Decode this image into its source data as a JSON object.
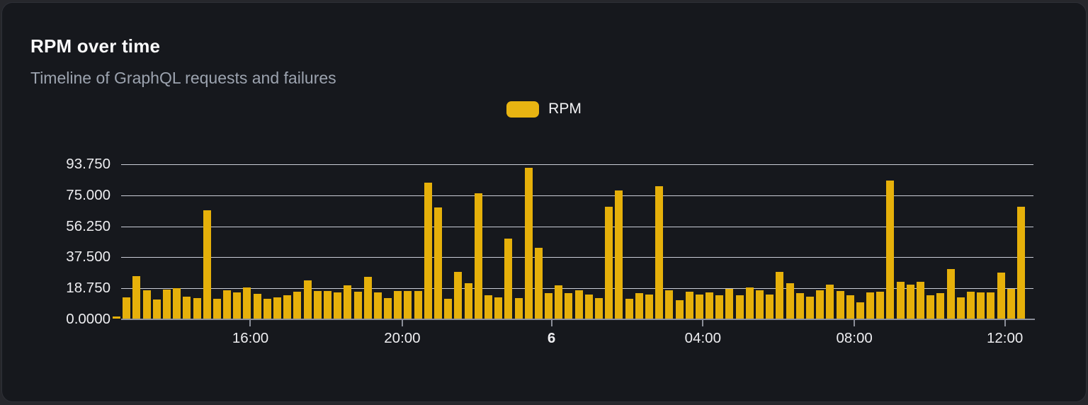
{
  "header": {
    "title": "RPM over time",
    "subtitle": "Timeline of GraphQL requests and failures"
  },
  "legend": {
    "items": [
      {
        "label": "RPM",
        "color": "#E8B412"
      }
    ]
  },
  "theme": {
    "card_background": "#16181D",
    "outer_background": "#26272C",
    "grid_color": "#DADDE7",
    "axis_color": "#8B8E98",
    "text_primary": "#FAFAFB",
    "text_secondary": "#9CA3AF",
    "bar_color": "#E6B00A"
  },
  "chart_data": {
    "type": "bar",
    "title": "RPM over time",
    "subtitle": "Timeline of GraphQL requests and failures",
    "xlabel": "",
    "ylabel": "",
    "ylim": [
      0,
      93.75
    ],
    "grid": "horizontal",
    "legend_position": "top-center",
    "y_tick_labels": [
      "93.750",
      "75.000",
      "56.250",
      "37.500",
      "18.750",
      "0.0000"
    ],
    "x_ticks": [
      {
        "label": "16:00",
        "pct": 15.1,
        "bold": false
      },
      {
        "label": "20:00",
        "pct": 31.75,
        "bold": false
      },
      {
        "label": "6",
        "pct": 48.1,
        "bold": true
      },
      {
        "label": "04:00",
        "pct": 64.7,
        "bold": false
      },
      {
        "label": "08:00",
        "pct": 81.3,
        "bold": false
      },
      {
        "label": "12:00",
        "pct": 97.8,
        "bold": false
      }
    ],
    "series": [
      {
        "name": "RPM",
        "color": "#E6B00A",
        "values": [
          1.5,
          13.1,
          25.7,
          17.1,
          11.7,
          17.8,
          18.3,
          13.5,
          12.4,
          65.7,
          12.0,
          17.1,
          16.1,
          18.8,
          15.0,
          12.1,
          12.7,
          14.2,
          16.4,
          23.1,
          16.8,
          16.8,
          16.0,
          20.2,
          16.2,
          25.4,
          16.0,
          12.5,
          16.8,
          16.8,
          16.8,
          82.4,
          67.7,
          12.0,
          28.5,
          21.4,
          76.2,
          14.0,
          12.8,
          48.4,
          12.4,
          91.6,
          42.8,
          15.3,
          20.2,
          15.5,
          17.2,
          14.7,
          12.4,
          67.8,
          77.7,
          12.0,
          15.7,
          14.7,
          80.4,
          17.4,
          11.0,
          16.5,
          14.5,
          16.0,
          14.2,
          18.2,
          14.2,
          19.1,
          17.4,
          14.8,
          28.5,
          21.4,
          15.4,
          13.4,
          17.1,
          20.5,
          16.8,
          14.0,
          10.0,
          16.0,
          16.5,
          83.8,
          22.5,
          20.8,
          22.5,
          14.0,
          15.4,
          30.2,
          12.8,
          16.5,
          16.0,
          16.0,
          27.9,
          18.0,
          68.1
        ]
      }
    ]
  }
}
